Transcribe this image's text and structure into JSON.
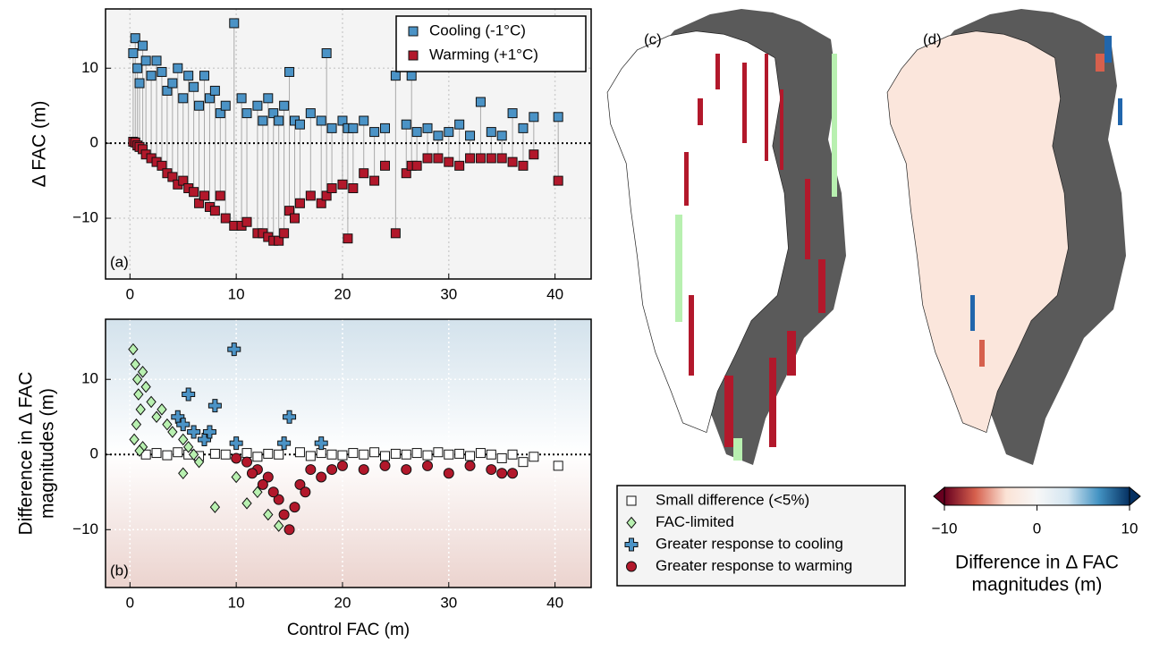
{
  "chart_data": [
    {
      "type": "scatter",
      "panel_label": "(a)",
      "ylabel": "Δ FAC (m)",
      "legend": "upper right",
      "grid": true,
      "zero_line": true,
      "paired_lines": true,
      "xlim": [
        -2.3,
        43.4
      ],
      "ylim": [
        -18.1,
        17.9
      ],
      "xticks": [
        0,
        10,
        20,
        30,
        40
      ],
      "yticks": [
        {
          "value": -10,
          "label": "−10"
        },
        0,
        10
      ],
      "x": [
        0.3,
        0.5,
        0.7,
        0.9,
        1.2,
        1.5,
        2,
        2.5,
        3,
        3.5,
        4,
        4.5,
        5,
        5.5,
        6,
        6.5,
        7,
        7.5,
        8,
        8.5,
        9,
        9.8,
        10.5,
        11,
        12,
        12.5,
        13,
        13.5,
        14,
        14.5,
        15,
        15.5,
        16,
        17,
        18,
        18.5,
        19,
        20,
        20.5,
        21,
        22,
        23,
        24,
        25,
        26,
        26.5,
        27,
        28,
        29,
        30,
        31,
        32,
        33,
        34,
        35,
        36,
        37,
        38,
        40.3
      ],
      "series": [
        {
          "name": "Cooling (-1°C)",
          "color": "#4b93c6",
          "marker": "square",
          "values": [
            12,
            14,
            10,
            8,
            13,
            11,
            9,
            11,
            9.5,
            7,
            8,
            10,
            6,
            9,
            7.5,
            5,
            9,
            6,
            7,
            4,
            5,
            16,
            6,
            4,
            5,
            3,
            6,
            4,
            3,
            5,
            9.5,
            3,
            2.5,
            4,
            3,
            12,
            2,
            3,
            2,
            2,
            3,
            1.5,
            2,
            9,
            2.5,
            9,
            1.5,
            2,
            1,
            1.5,
            2.5,
            1,
            5.5,
            1.5,
            1,
            4,
            2,
            3.5,
            3.5
          ]
        },
        {
          "name": "Warming (+1°C)",
          "color": "#b2182b",
          "marker": "square",
          "values": [
            0.2,
            0.1,
            -0.3,
            -0.5,
            -0.8,
            -1.5,
            -2,
            -2.5,
            -3,
            -4,
            -4.5,
            -5.5,
            -5,
            -6,
            -6.5,
            -8,
            -7,
            -8.5,
            -9,
            -7,
            -10,
            -11,
            -11,
            -10.5,
            -12,
            -12,
            -12.5,
            -13,
            -13,
            -12,
            -9,
            -10,
            -8,
            -7,
            -8,
            -7,
            -6,
            -5.5,
            -12.7,
            -6,
            -4,
            -5,
            -3,
            -12,
            -4,
            -3,
            -3,
            -2,
            -2,
            -2.5,
            -3,
            -2,
            -2,
            -2,
            -2,
            -2.5,
            -3,
            -1.5,
            -5
          ]
        }
      ]
    },
    {
      "type": "scatter",
      "panel_label": "(b)",
      "ylabel_lines": [
        "Difference in Δ FAC",
        "magnitudes (m)"
      ],
      "xlabel": "Control FAC (m)",
      "legend": "outside",
      "grid": true,
      "zero_line": true,
      "background": [
        "#d3e2ec",
        "#ffffff",
        "#ebd3ce"
      ],
      "xlim": [
        -2.3,
        43.4
      ],
      "ylim": [
        -17.7,
        18
      ],
      "xticks": [
        0,
        10,
        20,
        30,
        40
      ],
      "yticks": [
        {
          "value": -10,
          "label": "−10"
        },
        0,
        10
      ],
      "series": [
        {
          "name": "Small difference (<5%)",
          "color": "#ffffff",
          "marker": "square",
          "x": [
            1.5,
            2.5,
            3.5,
            4.5,
            5.5,
            6.5,
            8,
            9,
            11,
            12,
            13,
            14,
            16,
            17,
            18,
            19,
            20,
            21,
            22,
            23,
            24,
            25,
            26,
            27,
            28,
            29,
            30,
            31,
            32,
            33,
            34,
            35,
            36,
            37,
            38,
            40.3
          ],
          "values": [
            0,
            0.2,
            -0.1,
            0.3,
            0,
            -0.2,
            0.1,
            0,
            0.2,
            -0.3,
            0.1,
            0,
            0.3,
            -0.2,
            0.2,
            0,
            -0.1,
            0.2,
            0,
            0.3,
            -0.2,
            0.1,
            0,
            0.2,
            -0.1,
            0.3,
            0,
            0.1,
            -0.2,
            0.2,
            0,
            -0.5,
            0,
            -1,
            -0.3,
            -1.5
          ]
        },
        {
          "name": "FAC-limited",
          "color": "#b8f0b0",
          "marker": "diamond",
          "x": [
            0.3,
            0.5,
            0.7,
            0.8,
            1,
            0.6,
            0.4,
            1.2,
            1.5,
            2,
            2.5,
            3,
            3.5,
            4,
            4.5,
            5,
            5.5,
            6,
            6.5,
            5,
            10,
            8,
            12,
            11,
            14,
            13,
            1.2,
            0.9
          ],
          "values": [
            14,
            12,
            10,
            8,
            6,
            4,
            2,
            11,
            9,
            7,
            5,
            6,
            4,
            3,
            5,
            2,
            1,
            0,
            -1,
            -2.5,
            -3,
            -7,
            -5,
            -6.5,
            -9.5,
            -8,
            1,
            0.5
          ]
        },
        {
          "name": "Greater response to cooling",
          "color": "#4b93c6",
          "marker": "plus",
          "x": [
            5.5,
            8,
            9.8,
            4.5,
            5,
            6,
            7,
            7.5,
            10,
            15,
            18,
            14.5
          ],
          "values": [
            8,
            6.5,
            14,
            5,
            4,
            3,
            2,
            3,
            1.5,
            5,
            1.5,
            1.5
          ]
        },
        {
          "name": "Greater response to warming",
          "color": "#b2182b",
          "marker": "circle",
          "x": [
            10,
            11,
            12,
            13,
            14,
            14.5,
            15,
            15.5,
            16,
            17,
            18,
            19,
            20,
            22,
            24,
            26,
            28,
            30,
            32,
            34,
            35,
            36,
            13.5,
            12.5,
            11.5,
            16.5
          ],
          "values": [
            -0.5,
            -1,
            -2,
            -3,
            -6,
            -8,
            -10,
            -7,
            -4,
            -2,
            -3,
            -2,
            -1.5,
            -2,
            -1.5,
            -2,
            -1.5,
            -2.5,
            -1.5,
            -2,
            -2.5,
            -2.5,
            -5,
            -4,
            -2.5,
            -5
          ]
        }
      ]
    },
    {
      "type": "map",
      "panel_label": "(c)"
    },
    {
      "type": "map",
      "panel_label": "(d)",
      "colorbar": {
        "label_lines": [
          "Difference in Δ FAC",
          "magnitudes (m)"
        ],
        "clim": [
          -10,
          10
        ],
        "ticks": [
          {
            "value": -10,
            "label": "−10"
          },
          0,
          10
        ],
        "colors": [
          "#67001f",
          "#d6604d",
          "#fbe3d6",
          "#f7f7f7",
          "#d4e6f1",
          "#4393c3",
          "#053061"
        ]
      }
    }
  ]
}
